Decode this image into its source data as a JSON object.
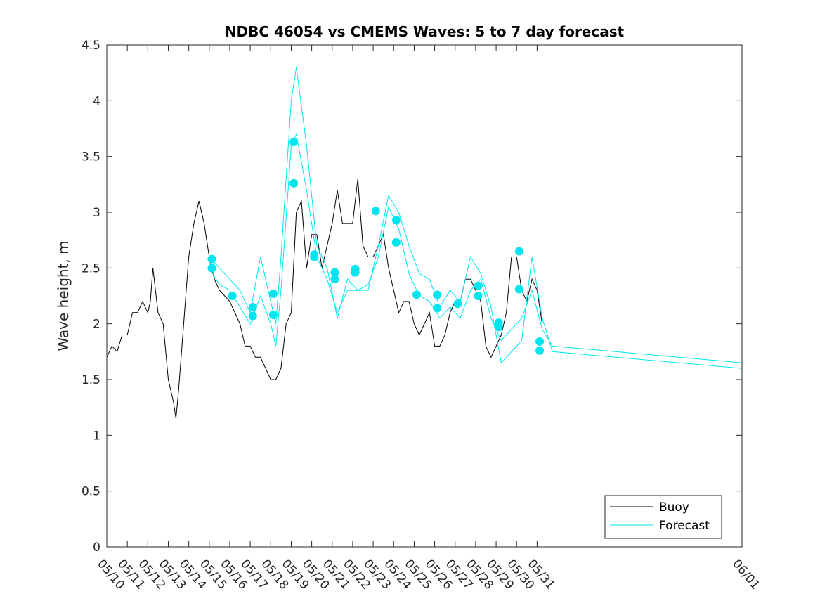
{
  "chart_data": {
    "type": "line",
    "title": "NDBC 46054 vs CMEMS Waves: 5 to 7 day forecast",
    "xlabel": "",
    "ylabel": "Wave height, m",
    "xlim": [
      "05/10",
      "06/01"
    ],
    "ylim": [
      0,
      4.5
    ],
    "x_ticks": [
      "05/10",
      "05/11",
      "05/12",
      "05/13",
      "05/14",
      "05/15",
      "05/16",
      "05/17",
      "05/18",
      "05/19",
      "05/20",
      "05/21",
      "05/22",
      "05/23",
      "05/24",
      "05/25",
      "05/26",
      "05/27",
      "05/28",
      "05/29",
      "05/30",
      "05/31",
      "06/01"
    ],
    "y_ticks": [
      0,
      0.5,
      1,
      1.5,
      2,
      2.5,
      3,
      3.5,
      4,
      4.5
    ],
    "y_tick_labels": [
      "0",
      "0.5",
      "1",
      "1.5",
      "2",
      "2.5",
      "3",
      "3.5",
      "4",
      "4.5"
    ],
    "grid": false,
    "legend_position": "bottom-right",
    "legend": [
      "Buoy",
      "Forecast"
    ],
    "colors": {
      "buoy": "#000000",
      "forecast": "#00E5EE",
      "axes": "#262626"
    },
    "series": [
      {
        "name": "Buoy",
        "x": [
          "05/10 00:00",
          "05/10 06:00",
          "05/10 12:00",
          "05/10 18:00",
          "05/11 00:00",
          "05/11 06:00",
          "05/11 12:00",
          "05/11 18:00",
          "05/12 00:00",
          "05/12 03:00",
          "05/12 06:00",
          "05/12 12:00",
          "05/12 18:00",
          "05/13 00:00",
          "05/13 06:00",
          "05/13 09:00",
          "05/13 12:00",
          "05/13 18:00",
          "05/14 00:00",
          "05/14 06:00",
          "05/14 12:00",
          "05/14 18:00",
          "05/15 00:00",
          "05/15 06:00",
          "05/15 12:00",
          "05/15 18:00",
          "05/16 00:00",
          "05/16 06:00",
          "05/16 12:00",
          "05/16 18:00",
          "05/17 00:00",
          "05/17 06:00",
          "05/17 12:00",
          "05/17 18:00",
          "05/18 00:00",
          "05/18 06:00",
          "05/18 12:00",
          "05/18 18:00",
          "05/19 00:00",
          "05/19 06:00",
          "05/19 12:00",
          "05/19 18:00",
          "05/20 00:00",
          "05/20 06:00",
          "05/20 12:00",
          "05/20 18:00",
          "05/21 00:00",
          "05/21 06:00",
          "05/21 12:00",
          "05/21 18:00",
          "05/22 00:00",
          "05/22 06:00",
          "05/22 12:00",
          "05/22 18:00",
          "05/23 00:00",
          "05/23 06:00",
          "05/23 12:00",
          "05/23 18:00",
          "05/24 00:00",
          "05/24 06:00",
          "05/24 12:00",
          "05/24 18:00",
          "05/25 00:00",
          "05/25 06:00",
          "05/25 12:00",
          "05/25 18:00",
          "05/26 00:00",
          "05/26 06:00",
          "05/26 12:00",
          "05/26 18:00",
          "05/27 00:00",
          "05/27 06:00",
          "05/27 12:00",
          "05/27 18:00",
          "05/28 00:00",
          "05/28 06:00",
          "05/28 12:00",
          "05/28 18:00",
          "05/29 00:00",
          "05/29 06:00",
          "05/29 12:00",
          "05/29 18:00",
          "05/30 00:00",
          "05/30 06:00",
          "05/30 12:00",
          "05/30 18:00",
          "05/31 00:00",
          "05/31 06:00"
        ],
        "y": [
          1.7,
          1.8,
          1.75,
          1.9,
          1.9,
          2.1,
          2.1,
          2.2,
          2.1,
          2.2,
          2.5,
          2.1,
          2.0,
          1.5,
          1.3,
          1.15,
          1.4,
          2.0,
          2.6,
          2.9,
          3.1,
          2.9,
          2.6,
          2.4,
          2.3,
          2.25,
          2.2,
          2.1,
          2.0,
          1.8,
          1.8,
          1.7,
          1.7,
          1.6,
          1.5,
          1.5,
          1.6,
          2.0,
          2.1,
          3.0,
          3.1,
          2.5,
          2.8,
          2.8,
          2.5,
          2.7,
          2.9,
          3.2,
          2.9,
          2.9,
          2.9,
          3.3,
          2.7,
          2.6,
          2.6,
          2.7,
          2.8,
          2.5,
          2.3,
          2.1,
          2.2,
          2.2,
          2.0,
          1.9,
          2.0,
          2.1,
          1.8,
          1.8,
          1.9,
          2.1,
          2.2,
          2.2,
          2.4,
          2.4,
          2.3,
          2.2,
          1.8,
          1.7,
          1.8,
          1.9,
          2.1,
          2.6,
          2.6,
          2.3,
          2.2,
          2.4,
          2.3,
          2.0
        ]
      },
      {
        "name": "Forecast",
        "x": [
          "05/15 00:00",
          "05/15 12:00",
          "05/16 00:00",
          "05/16 12:00",
          "05/17 00:00",
          "05/17 12:00",
          "05/18 00:00",
          "05/18 06:00",
          "05/18 12:00",
          "05/19 00:00",
          "05/19 06:00",
          "05/19 18:00",
          "05/20 06:00",
          "05/20 18:00",
          "05/21 06:00",
          "05/21 18:00",
          "05/22 06:00",
          "05/22 18:00",
          "05/23 06:00",
          "05/23 18:00",
          "05/24 06:00",
          "05/24 18:00",
          "05/25 06:00",
          "05/25 18:00",
          "05/26 06:00",
          "05/26 18:00",
          "05/27 06:00",
          "05/27 18:00",
          "05/28 06:00",
          "05/28 18:00",
          "05/29 06:00",
          "05/29 18:00",
          "05/30 06:00",
          "05/30 18:00",
          "05/31 06:00",
          "05/31 18:00",
          "06/01 00:00"
        ],
        "y": [
          2.5,
          2.35,
          2.3,
          2.15,
          2.0,
          2.25,
          2.0,
          1.8,
          2.3,
          3.6,
          3.7,
          3.2,
          2.6,
          2.4,
          2.1,
          2.3,
          2.3,
          2.35,
          2.6,
          3.05,
          2.85,
          2.45,
          2.25,
          2.2,
          2.05,
          2.15,
          2.05,
          2.3,
          2.4,
          2.05,
          1.85,
          1.95,
          2.05,
          2.3,
          1.95,
          1.8,
          1.65
        ]
      },
      {
        "name": "Forecast",
        "x": [
          "05/15 00:00",
          "05/15 12:00",
          "05/16 00:00",
          "05/16 12:00",
          "05/17 00:00",
          "05/17 12:00",
          "05/18 00:00",
          "05/18 06:00",
          "05/18 12:00",
          "05/19 00:00",
          "05/19 06:00",
          "05/19 18:00",
          "05/20 06:00",
          "05/20 18:00",
          "05/21 06:00",
          "05/21 18:00",
          "05/22 06:00",
          "05/22 18:00",
          "05/23 06:00",
          "05/23 18:00",
          "05/24 06:00",
          "05/24 18:00",
          "05/25 06:00",
          "05/25 18:00",
          "05/26 06:00",
          "05/26 18:00",
          "05/27 06:00",
          "05/27 18:00",
          "05/28 06:00",
          "05/28 18:00",
          "05/29 06:00",
          "05/29 18:00",
          "05/30 06:00",
          "05/30 18:00",
          "05/31 06:00",
          "05/31 18:00",
          "06/01 00:00"
        ],
        "y": [
          2.6,
          2.5,
          2.4,
          2.3,
          2.1,
          2.6,
          2.2,
          2.0,
          2.6,
          4.0,
          4.3,
          3.6,
          2.7,
          2.5,
          2.05,
          2.4,
          2.3,
          2.3,
          2.7,
          3.15,
          3.0,
          2.7,
          2.45,
          2.4,
          2.15,
          2.3,
          2.2,
          2.6,
          2.45,
          2.15,
          1.65,
          1.75,
          1.85,
          2.6,
          2.05,
          1.75,
          1.6
        ]
      }
    ],
    "forecast_markers": [
      {
        "x": "05/15 03:00",
        "y": 2.58
      },
      {
        "x": "05/15 03:00",
        "y": 2.5
      },
      {
        "x": "05/16 03:00",
        "y": 2.25
      },
      {
        "x": "05/17 03:00",
        "y": 2.15
      },
      {
        "x": "05/17 03:00",
        "y": 2.07
      },
      {
        "x": "05/18 03:00",
        "y": 2.27
      },
      {
        "x": "05/18 03:00",
        "y": 2.08
      },
      {
        "x": "05/19 03:00",
        "y": 3.63
      },
      {
        "x": "05/19 03:00",
        "y": 3.26
      },
      {
        "x": "05/20 03:00",
        "y": 2.62
      },
      {
        "x": "05/20 03:00",
        "y": 2.6
      },
      {
        "x": "05/21 03:00",
        "y": 2.46
      },
      {
        "x": "05/21 03:00",
        "y": 2.4
      },
      {
        "x": "05/22 03:00",
        "y": 2.49
      },
      {
        "x": "05/22 03:00",
        "y": 2.46
      },
      {
        "x": "05/23 03:00",
        "y": 3.01
      },
      {
        "x": "05/24 03:00",
        "y": 2.93
      },
      {
        "x": "05/24 03:00",
        "y": 2.73
      },
      {
        "x": "05/25 03:00",
        "y": 2.26
      },
      {
        "x": "05/26 03:00",
        "y": 2.26
      },
      {
        "x": "05/26 03:00",
        "y": 2.14
      },
      {
        "x": "05/27 03:00",
        "y": 2.18
      },
      {
        "x": "05/28 03:00",
        "y": 2.34
      },
      {
        "x": "05/28 03:00",
        "y": 2.25
      },
      {
        "x": "05/29 03:00",
        "y": 2.01
      },
      {
        "x": "05/29 03:00",
        "y": 1.97
      },
      {
        "x": "05/30 03:00",
        "y": 2.65
      },
      {
        "x": "05/30 03:00",
        "y": 2.31
      },
      {
        "x": "05/31 03:00",
        "y": 1.84
      },
      {
        "x": "05/31 03:00",
        "y": 1.76
      }
    ]
  }
}
